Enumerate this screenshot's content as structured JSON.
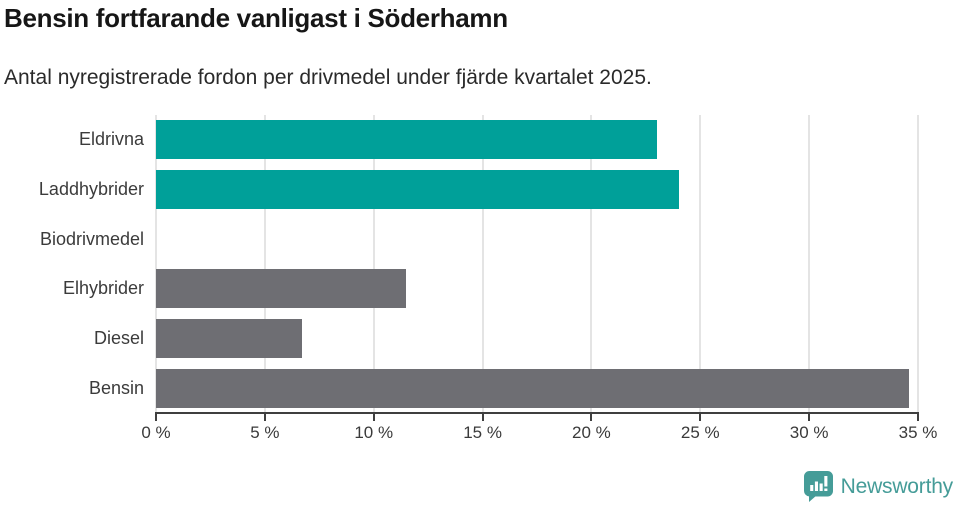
{
  "title": "Bensin fortfarande vanligast i Söderhamn",
  "subtitle": "Antal nyregistrerade fordon per drivmedel under fjärde kvartalet 2025.",
  "chart_data": {
    "type": "bar",
    "orientation": "horizontal",
    "title": "Bensin fortfarande vanligast i Söderhamn",
    "subtitle": "Antal nyregistrerade fordon per drivmedel under fjärde kvartalet 2025.",
    "categories": [
      "Eldrivna",
      "Laddhybrider",
      "Biodrivmedel",
      "Elhybrider",
      "Diesel",
      "Bensin"
    ],
    "values": [
      23.0,
      24.0,
      0,
      11.5,
      6.7,
      34.6
    ],
    "unit": "%",
    "xlabel": "",
    "ylabel": "",
    "xlim": [
      0,
      35
    ],
    "ticks": [
      0,
      5,
      10,
      15,
      20,
      25,
      30,
      35
    ],
    "tick_labels": [
      "0 %",
      "5 %",
      "10 %",
      "15 %",
      "20 %",
      "25 %",
      "30 %",
      "35 %"
    ],
    "bar_colors": [
      "#00a099",
      "#00a099",
      "#6e6e73",
      "#6e6e73",
      "#6e6e73",
      "#6e6e73"
    ],
    "grid": true,
    "legend": false
  },
  "colors": {
    "highlight_teal": "#00a099",
    "neutral_gray": "#6e6e73",
    "gridline": "#e4e4e4",
    "axis": "#3f3f3f",
    "logo_teal": "#459c98"
  },
  "footer": {
    "brand": "Newsworthy",
    "icon": "newsworthy-bar-chart-speech-bubble-icon"
  }
}
